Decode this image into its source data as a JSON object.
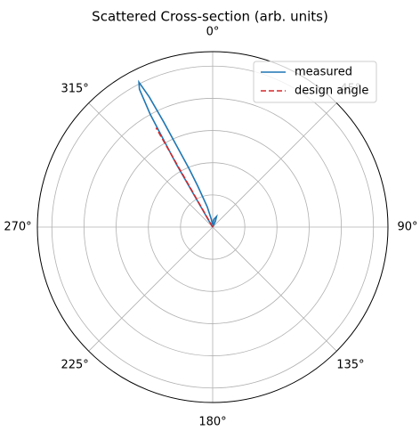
{
  "chart_data": {
    "type": "polar_line",
    "title": "Scattered Cross-section (arb. units)",
    "theta_zero": "top",
    "theta_direction": "clockwise",
    "thetaticks": [
      {
        "value": 0,
        "label": "0°"
      },
      {
        "value": 45,
        "label": "45°"
      },
      {
        "value": 90,
        "label": "90°"
      },
      {
        "value": 135,
        "label": "135°"
      },
      {
        "value": 180,
        "label": "180°"
      },
      {
        "value": 225,
        "label": "225°"
      },
      {
        "value": 270,
        "label": "270°"
      },
      {
        "value": 315,
        "label": "315°"
      }
    ],
    "rlim": [
      0,
      1.09
    ],
    "rticks": [
      0.2,
      0.4,
      0.6,
      0.8,
      1.0
    ],
    "grid": true,
    "legend": "upper right",
    "series": [
      {
        "name": "measured",
        "color": "#1f77b4",
        "style": "solid",
        "theta": [
          0,
          329,
          330,
          331,
          332,
          333,
          334,
          335,
          336,
          338,
          340,
          345,
          350,
          355,
          0,
          10,
          20,
          25,
          30
        ],
        "r": [
          0,
          0.05,
          0.45,
          0.8,
          0.97,
          1.01,
          0.9,
          0.72,
          0.56,
          0.39,
          0.27,
          0.13,
          0.05,
          0.02,
          0.02,
          0.05,
          0.07,
          0.04,
          0
        ]
      },
      {
        "name": "design angle",
        "color": "#d62728",
        "style": "dashed",
        "theta": [
          330.3,
          330.3
        ],
        "r": [
          0,
          0.71
        ]
      }
    ]
  }
}
